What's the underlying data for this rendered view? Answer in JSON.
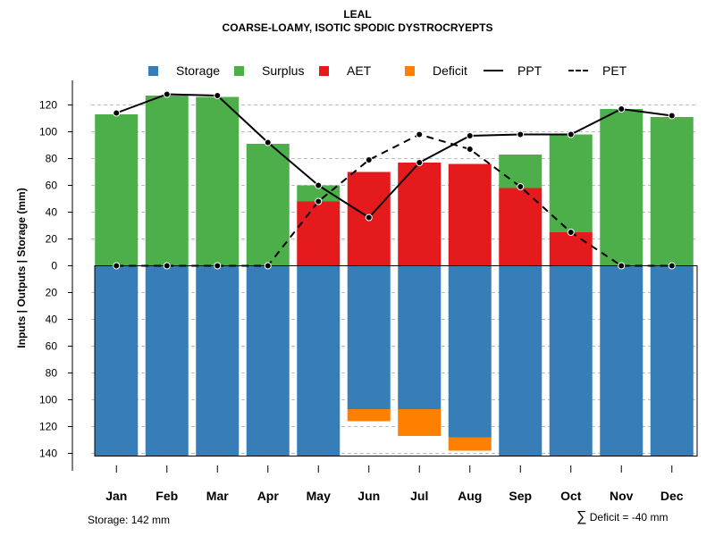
{
  "chart_data": {
    "type": "bar",
    "title": "LEAL",
    "subtitle": "COARSE-LOAMY, ISOTIC SPODIC DYSTROCRYEPTS",
    "ylabel": "Inputs | Outputs | Storage    (mm)",
    "ylim": [
      -145,
      135
    ],
    "y_ticks": [
      120,
      100,
      80,
      60,
      40,
      20,
      0,
      -20,
      -40,
      -60,
      -80,
      -100,
      -120,
      -140
    ],
    "y_tick_labels": [
      "120",
      "100",
      "80",
      "60",
      "40",
      "20",
      "0",
      "20",
      "40",
      "60",
      "80",
      "100",
      "120",
      "140"
    ],
    "categories": [
      "Jan",
      "Feb",
      "Mar",
      "Apr",
      "May",
      "Jun",
      "Jul",
      "Aug",
      "Sep",
      "Oct",
      "Nov",
      "Dec"
    ],
    "legend": [
      "Storage",
      "Surplus",
      "AET",
      "Deficit",
      "PPT",
      "PET"
    ],
    "colors": {
      "storage": "#377EB8",
      "surplus": "#4DAF4A",
      "aet": "#E41A1C",
      "deficit": "#FF7F00",
      "line": "#000000",
      "grid": "#BEBEBE"
    },
    "series": [
      {
        "name": "Storage",
        "values": [
          142,
          142,
          142,
          142,
          142,
          107,
          107,
          128,
          142,
          142,
          142,
          142
        ]
      },
      {
        "name": "Deficit",
        "values": [
          0,
          0,
          0,
          0,
          0,
          9,
          20,
          10,
          0,
          0,
          0,
          0
        ]
      },
      {
        "name": "AET",
        "values": [
          0,
          0,
          0,
          0,
          48,
          70,
          77,
          76,
          58,
          25,
          0,
          0
        ]
      },
      {
        "name": "Surplus",
        "values": [
          113,
          127,
          126,
          91,
          12,
          0,
          0,
          0,
          25,
          73,
          117,
          111
        ]
      },
      {
        "name": "PPT",
        "values": [
          114,
          128,
          127,
          92,
          60,
          36,
          77,
          97,
          98,
          98,
          117,
          112
        ]
      },
      {
        "name": "PET",
        "values": [
          0,
          0,
          0,
          0,
          48,
          79,
          98,
          87,
          59,
          25,
          0,
          0
        ]
      }
    ]
  },
  "footer": {
    "storage_text": "Storage: 142 mm",
    "sum_symbol": "∑",
    "deficit_text": "Deficit = -40 mm"
  }
}
